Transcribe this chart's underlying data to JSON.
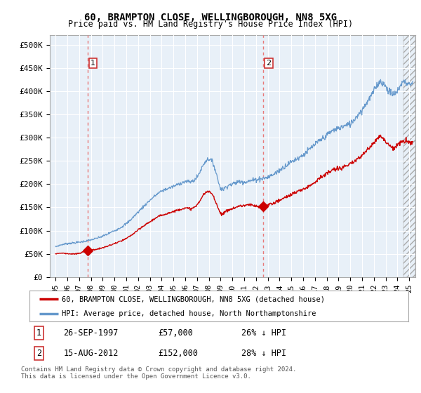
{
  "title": "60, BRAMPTON CLOSE, WELLINGBOROUGH, NN8 5XG",
  "subtitle": "Price paid vs. HM Land Registry's House Price Index (HPI)",
  "legend_line1": "60, BRAMPTON CLOSE, WELLINGBOROUGH, NN8 5XG (detached house)",
  "legend_line2": "HPI: Average price, detached house, North Northamptonshire",
  "table_rows": [
    {
      "num": "1",
      "date": "26-SEP-1997",
      "price": "£57,000",
      "hpi": "26% ↓ HPI"
    },
    {
      "num": "2",
      "date": "15-AUG-2012",
      "price": "£152,000",
      "hpi": "28% ↓ HPI"
    }
  ],
  "footnote": "Contains HM Land Registry data © Crown copyright and database right 2024.\nThis data is licensed under the Open Government Licence v3.0.",
  "sale1_year": 1997.73,
  "sale1_price": 57000,
  "sale2_year": 2012.62,
  "sale2_price": 152000,
  "xlim_left": 1994.5,
  "xlim_right": 2025.5,
  "ylim_bottom": 0,
  "ylim_top": 520000,
  "yticks": [
    0,
    50000,
    100000,
    150000,
    200000,
    250000,
    300000,
    350000,
    400000,
    450000,
    500000
  ],
  "ytick_labels": [
    "£0",
    "£50K",
    "£100K",
    "£150K",
    "£200K",
    "£250K",
    "£300K",
    "£350K",
    "£400K",
    "£450K",
    "£500K"
  ],
  "xticks": [
    1995,
    1996,
    1997,
    1998,
    1999,
    2000,
    2001,
    2002,
    2003,
    2004,
    2005,
    2006,
    2007,
    2008,
    2009,
    2010,
    2011,
    2012,
    2013,
    2014,
    2015,
    2016,
    2017,
    2018,
    2019,
    2020,
    2021,
    2022,
    2023,
    2024,
    2025
  ],
  "red_color": "#cc0000",
  "blue_color": "#6699cc",
  "dashed_red": "#e87878",
  "background_color": "#ffffff",
  "plot_bg_color": "#e8f0f8",
  "grid_color": "#ffffff",
  "future_cutoff": 2024.5
}
